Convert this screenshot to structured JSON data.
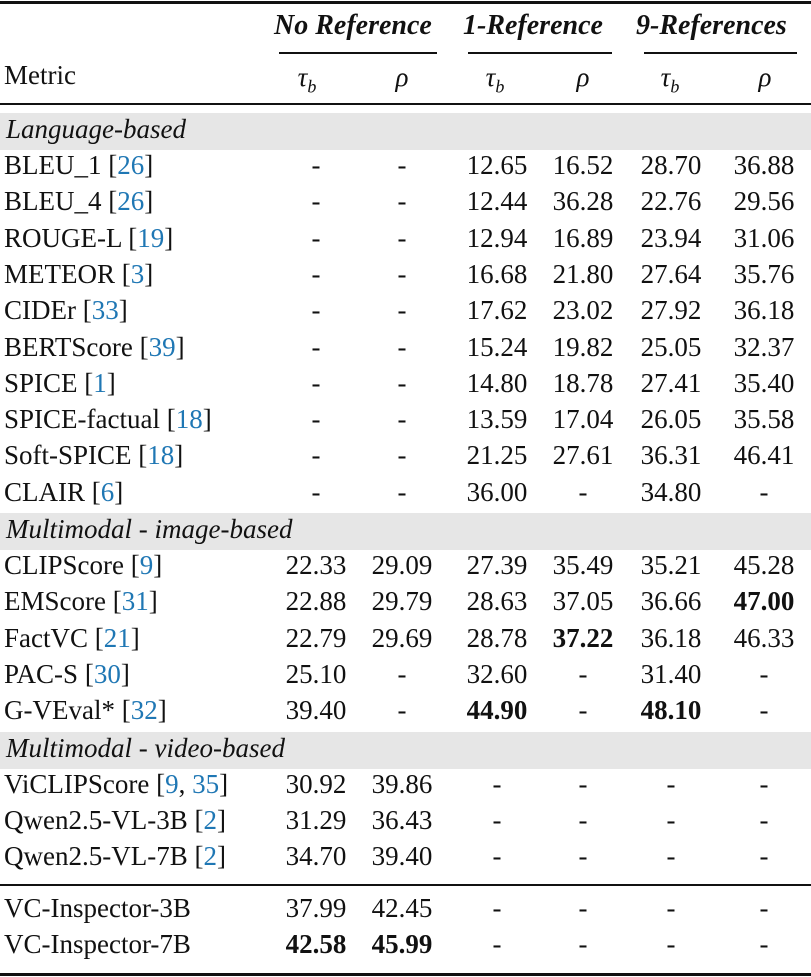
{
  "table": {
    "header": {
      "metric_label": "Metric",
      "groups": [
        {
          "label": "No Reference"
        },
        {
          "label": "1-Reference"
        },
        {
          "label": "9-References"
        }
      ],
      "sub_columns": [
        "τ_b",
        "ρ",
        "τ_b",
        "ρ",
        "τ_b",
        "ρ"
      ],
      "tau_base": "τ",
      "tau_sub": "b",
      "rho": "ρ"
    },
    "sections": [
      {
        "title": "Language-based",
        "rows": [
          {
            "metric": "BLEU_1",
            "cites": [
              "26"
            ],
            "values": [
              "-",
              "-",
              "12.65",
              "16.52",
              "28.70",
              "36.88"
            ],
            "bold": []
          },
          {
            "metric": "BLEU_4",
            "cites": [
              "26"
            ],
            "values": [
              "-",
              "-",
              "12.44",
              "36.28",
              "22.76",
              "29.56"
            ],
            "bold": []
          },
          {
            "metric": "ROUGE-L",
            "cites": [
              "19"
            ],
            "values": [
              "-",
              "-",
              "12.94",
              "16.89",
              "23.94",
              "31.06"
            ],
            "bold": []
          },
          {
            "metric": "METEOR",
            "cites": [
              "3"
            ],
            "values": [
              "-",
              "-",
              "16.68",
              "21.80",
              "27.64",
              "35.76"
            ],
            "bold": []
          },
          {
            "metric": "CIDEr",
            "cites": [
              "33"
            ],
            "values": [
              "-",
              "-",
              "17.62",
              "23.02",
              "27.92",
              "36.18"
            ],
            "bold": []
          },
          {
            "metric": "BERTScore",
            "cites": [
              "39"
            ],
            "values": [
              "-",
              "-",
              "15.24",
              "19.82",
              "25.05",
              "32.37"
            ],
            "bold": []
          },
          {
            "metric": "SPICE",
            "cites": [
              "1"
            ],
            "values": [
              "-",
              "-",
              "14.80",
              "18.78",
              "27.41",
              "35.40"
            ],
            "bold": []
          },
          {
            "metric": "SPICE-factual",
            "cites": [
              "18"
            ],
            "values": [
              "-",
              "-",
              "13.59",
              "17.04",
              "26.05",
              "35.58"
            ],
            "bold": []
          },
          {
            "metric": "Soft-SPICE",
            "cites": [
              "18"
            ],
            "values": [
              "-",
              "-",
              "21.25",
              "27.61",
              "36.31",
              "46.41"
            ],
            "bold": []
          },
          {
            "metric": "CLAIR",
            "cites": [
              "6"
            ],
            "values": [
              "-",
              "-",
              "36.00",
              "-",
              "34.80",
              "-"
            ],
            "bold": []
          }
        ]
      },
      {
        "title": "Multimodal - image-based",
        "rows": [
          {
            "metric": "CLIPScore",
            "cites": [
              "9"
            ],
            "values": [
              "22.33",
              "29.09",
              "27.39",
              "35.49",
              "35.21",
              "45.28"
            ],
            "bold": []
          },
          {
            "metric": "EMScore",
            "cites": [
              "31"
            ],
            "values": [
              "22.88",
              "29.79",
              "28.63",
              "37.05",
              "36.66",
              "47.00"
            ],
            "bold": [
              5
            ]
          },
          {
            "metric": "FactVC",
            "cites": [
              "21"
            ],
            "values": [
              "22.79",
              "29.69",
              "28.78",
              "37.22",
              "36.18",
              "46.33"
            ],
            "bold": [
              3
            ]
          },
          {
            "metric": "PAC-S",
            "cites": [
              "30"
            ],
            "values": [
              "25.10",
              "-",
              "32.60",
              "-",
              "31.40",
              "-"
            ],
            "bold": []
          },
          {
            "metric": "G-VEval*",
            "cites": [
              "32"
            ],
            "values": [
              "39.40",
              "-",
              "44.90",
              "-",
              "48.10",
              "-"
            ],
            "bold": [
              2,
              4
            ]
          }
        ]
      },
      {
        "title": "Multimodal - video-based",
        "rows": [
          {
            "metric": "ViCLIPScore",
            "cites": [
              "9",
              "35"
            ],
            "values": [
              "30.92",
              "39.86",
              "-",
              "-",
              "-",
              "-"
            ],
            "bold": []
          },
          {
            "metric": "Qwen2.5-VL-3B",
            "cites": [
              "2"
            ],
            "values": [
              "31.29",
              "36.43",
              "-",
              "-",
              "-",
              "-"
            ],
            "bold": []
          },
          {
            "metric": "Qwen2.5-VL-7B",
            "cites": [
              "2"
            ],
            "values": [
              "34.70",
              "39.40",
              "-",
              "-",
              "-",
              "-"
            ],
            "bold": []
          }
        ]
      }
    ],
    "ours": [
      {
        "metric": "VC-Inspector-3B",
        "cites": [],
        "values": [
          "37.99",
          "42.45",
          "-",
          "-",
          "-",
          "-"
        ],
        "bold": []
      },
      {
        "metric": "VC-Inspector-7B",
        "cites": [],
        "values": [
          "42.58",
          "45.99",
          "-",
          "-",
          "-",
          "-"
        ],
        "bold": [
          0,
          1
        ]
      }
    ]
  },
  "colors": {
    "citation": "#1f77b4",
    "section_band": "#e6e6e6",
    "text": "#111111"
  }
}
